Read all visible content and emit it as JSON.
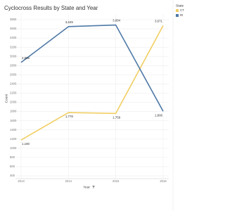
{
  "chart_data": {
    "type": "line",
    "title": "Cyclocross Results by State and Year",
    "x_label": "Year",
    "y_label": "Count",
    "x": [
      2013,
      2014,
      2015,
      2016
    ],
    "xlim": [
      2013,
      2016
    ],
    "xticks": [
      2013,
      2014,
      2015,
      2016
    ],
    "ylim": [
      400,
      3800
    ],
    "yticks": [
      400,
      600,
      800,
      1000,
      1200,
      1400,
      1600,
      1800,
      2000,
      2200,
      2400,
      2600,
      2800,
      3000,
      3200,
      3400,
      3600,
      3800
    ],
    "grid": true,
    "legend_title": "State",
    "legend": "right",
    "series": [
      {
        "name": "CT",
        "color": "#f1ce63",
        "values": [
          1180,
          1778,
          1759,
          3671
        ],
        "value_labels": [
          "1,180",
          "1,778",
          "1,759",
          "3,671"
        ]
      },
      {
        "name": "RI",
        "color": "#4e79a7",
        "values": [
          2869,
          3649,
          3684,
          1806
        ],
        "value_labels": [
          "2,869",
          "3,649",
          "3,684",
          "1,806"
        ]
      }
    ]
  }
}
